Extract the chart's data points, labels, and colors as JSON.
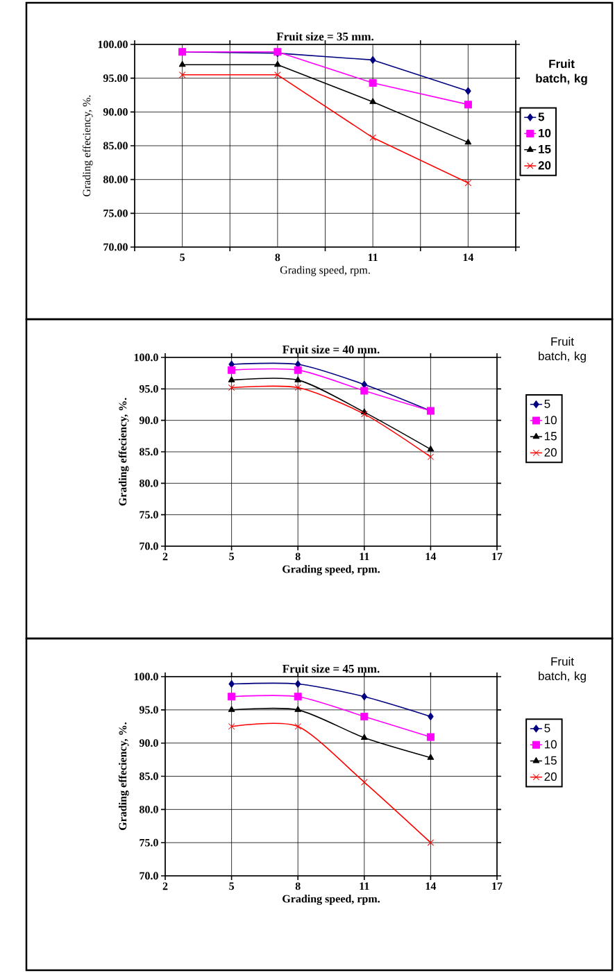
{
  "chart_data": [
    {
      "type": "line",
      "title": "Fruit size = 35 mm.",
      "xlabel": "Grading speed, rpm.",
      "ylabel": "Grading effeciency, %.",
      "legend_title": "Fruit batch, kg",
      "legend": "right",
      "grid": true,
      "categories": [
        "5",
        "8",
        "11",
        "14"
      ],
      "ylim": [
        70,
        100
      ],
      "yticks": [
        {
          "value": 70,
          "label": "70.00"
        },
        {
          "value": 75,
          "label": "75.00"
        },
        {
          "value": 80,
          "label": "80.00"
        },
        {
          "value": 85,
          "label": "85.00"
        },
        {
          "value": 90,
          "label": "90.00"
        },
        {
          "value": 95,
          "label": "95.00"
        },
        {
          "value": 100,
          "label": "100.00"
        }
      ],
      "series": [
        {
          "name": "5",
          "color": "#000080",
          "marker": "diamond",
          "values": [
            98.9,
            98.7,
            97.7,
            93.1
          ]
        },
        {
          "name": "10",
          "color": "#ff00ff",
          "marker": "square",
          "values": [
            98.9,
            98.9,
            94.3,
            91.1
          ]
        },
        {
          "name": "15",
          "color": "#000000",
          "marker": "triangle",
          "values": [
            97.0,
            97.0,
            91.5,
            85.5
          ]
        },
        {
          "name": "20",
          "color": "#ff0000",
          "marker": "cross",
          "values": [
            95.5,
            95.5,
            86.2,
            79.5
          ]
        }
      ]
    },
    {
      "type": "line",
      "title": "Fruit size = 40 mm.",
      "xlabel": "Grading speed, rpm.",
      "ylabel": "Grading effeciency, %.",
      "legend_title": "Fruit batch, kg",
      "legend": "right",
      "grid": true,
      "x": [
        5,
        8,
        11,
        14
      ],
      "xlim": [
        2,
        17
      ],
      "xticks": [
        2,
        5,
        8,
        11,
        14,
        17
      ],
      "ylim": [
        70,
        100
      ],
      "yticks": [
        {
          "value": 70,
          "label": "70.0"
        },
        {
          "value": 75,
          "label": "75.0"
        },
        {
          "value": 80,
          "label": "80.0"
        },
        {
          "value": 85,
          "label": "85.0"
        },
        {
          "value": 90,
          "label": "90.0"
        },
        {
          "value": 95,
          "label": "95.0"
        },
        {
          "value": 100,
          "label": "100.0"
        }
      ],
      "series": [
        {
          "name": "5",
          "color": "#000080",
          "marker": "diamond",
          "values": [
            98.9,
            98.9,
            95.7,
            91.5
          ]
        },
        {
          "name": "10",
          "color": "#ff00ff",
          "marker": "square",
          "values": [
            98.0,
            98.0,
            94.7,
            91.5
          ]
        },
        {
          "name": "15",
          "color": "#000000",
          "marker": "triangle",
          "values": [
            96.4,
            96.4,
            91.3,
            85.4
          ]
        },
        {
          "name": "20",
          "color": "#ff0000",
          "marker": "cross",
          "values": [
            95.2,
            95.2,
            91.0,
            84.2
          ]
        }
      ]
    },
    {
      "type": "line",
      "title": "Fruit size = 45 mm.",
      "xlabel": "Grading speed, rpm.",
      "ylabel": "Grading effeciency, %.",
      "legend_title": "Fruit batch, kg",
      "legend": "right",
      "grid": true,
      "x": [
        5,
        8,
        11,
        14
      ],
      "xlim": [
        2,
        17
      ],
      "xticks": [
        2,
        5,
        8,
        11,
        14,
        17
      ],
      "ylim": [
        70,
        100
      ],
      "yticks": [
        {
          "value": 70,
          "label": "70.0"
        },
        {
          "value": 75,
          "label": "75.0"
        },
        {
          "value": 80,
          "label": "80.0"
        },
        {
          "value": 85,
          "label": "85.0"
        },
        {
          "value": 90,
          "label": "90.0"
        },
        {
          "value": 95,
          "label": "95.0"
        },
        {
          "value": 100,
          "label": "100.0"
        }
      ],
      "series": [
        {
          "name": "5",
          "color": "#000080",
          "marker": "diamond",
          "values": [
            98.9,
            98.9,
            97.0,
            94.0
          ]
        },
        {
          "name": "10",
          "color": "#ff00ff",
          "marker": "square",
          "values": [
            97.0,
            97.0,
            94.0,
            90.9
          ]
        },
        {
          "name": "15",
          "color": "#000000",
          "marker": "triangle",
          "values": [
            95.0,
            95.0,
            90.8,
            87.8
          ]
        },
        {
          "name": "20",
          "color": "#ff0000",
          "marker": "cross",
          "values": [
            92.5,
            92.5,
            84.1,
            75.0
          ]
        }
      ]
    }
  ]
}
